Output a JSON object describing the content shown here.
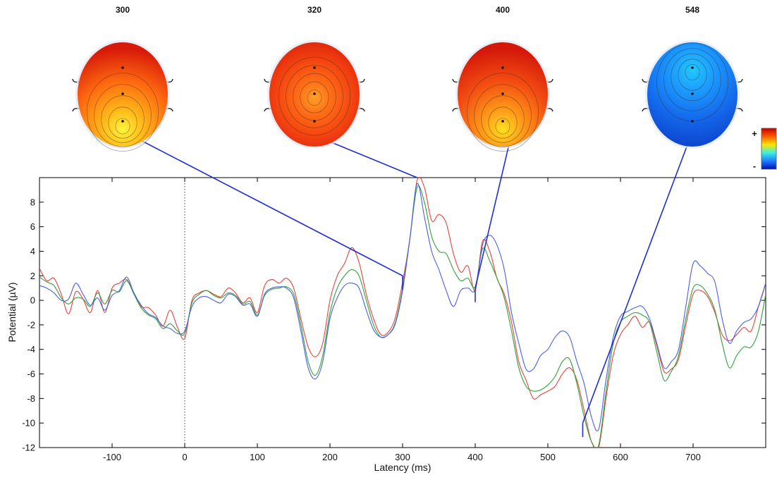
{
  "chart_data": {
    "type": "line",
    "xlabel": "Latency (ms)",
    "ylabel": "Potential (µV)",
    "xlim": [
      -200,
      800
    ],
    "ylim": [
      -12,
      10
    ],
    "x_ticks": [
      -100,
      0,
      100,
      200,
      300,
      400,
      500,
      600,
      700
    ],
    "y_ticks": [
      -12,
      -10,
      -8,
      -6,
      -4,
      -2,
      0,
      2,
      4,
      6,
      8
    ],
    "stimulus_onset": 0,
    "grid": false,
    "series": [
      {
        "color": "#e8433a",
        "points": [
          [
            -200,
            2.6
          ],
          [
            -190,
            1.6
          ],
          [
            -180,
            1.8
          ],
          [
            -170,
            0.5
          ],
          [
            -160,
            -1.1
          ],
          [
            -150,
            0.7
          ],
          [
            -140,
            0.1
          ],
          [
            -130,
            -1.0
          ],
          [
            -120,
            0.8
          ],
          [
            -110,
            -1.0
          ],
          [
            -100,
            1.0
          ],
          [
            -90,
            1.4
          ],
          [
            -80,
            1.7
          ],
          [
            -70,
            0.6
          ],
          [
            -60,
            -0.5
          ],
          [
            -50,
            -0.6
          ],
          [
            -40,
            -1.2
          ],
          [
            -30,
            -2.1
          ],
          [
            -20,
            -0.8
          ],
          [
            -10,
            -2.2
          ],
          [
            0,
            -3.1
          ],
          [
            10,
            0.0
          ],
          [
            20,
            0.6
          ],
          [
            30,
            0.8
          ],
          [
            40,
            0.5
          ],
          [
            50,
            0.3
          ],
          [
            60,
            1.0
          ],
          [
            70,
            0.6
          ],
          [
            80,
            -0.2
          ],
          [
            90,
            0.2
          ],
          [
            100,
            -1.0
          ],
          [
            110,
            1.2
          ],
          [
            120,
            1.7
          ],
          [
            130,
            1.4
          ],
          [
            140,
            1.8
          ],
          [
            150,
            1.0
          ],
          [
            160,
            -1.5
          ],
          [
            170,
            -3.8
          ],
          [
            180,
            -4.6
          ],
          [
            190,
            -3.5
          ],
          [
            200,
            0.0
          ],
          [
            210,
            2.0
          ],
          [
            220,
            3.0
          ],
          [
            230,
            4.3
          ],
          [
            240,
            3.1
          ],
          [
            250,
            0.5
          ],
          [
            260,
            -1.5
          ],
          [
            270,
            -2.8
          ],
          [
            280,
            -2.6
          ],
          [
            290,
            -1.4
          ],
          [
            300,
            1.5
          ],
          [
            310,
            5.0
          ],
          [
            320,
            9.8
          ],
          [
            330,
            9.2
          ],
          [
            340,
            6.5
          ],
          [
            350,
            7.0
          ],
          [
            360,
            6.3
          ],
          [
            370,
            3.8
          ],
          [
            380,
            2.3
          ],
          [
            390,
            2.8
          ],
          [
            400,
            0.8
          ],
          [
            410,
            4.8
          ],
          [
            420,
            4.0
          ],
          [
            430,
            1.8
          ],
          [
            440,
            0.5
          ],
          [
            450,
            -1.8
          ],
          [
            460,
            -5.0
          ],
          [
            470,
            -6.5
          ],
          [
            480,
            -8.0
          ],
          [
            490,
            -7.7
          ],
          [
            500,
            -7.4
          ],
          [
            510,
            -7.0
          ],
          [
            520,
            -6.0
          ],
          [
            530,
            -5.5
          ],
          [
            540,
            -6.5
          ],
          [
            550,
            -9.0
          ],
          [
            560,
            -11.5
          ],
          [
            570,
            -12.0
          ],
          [
            580,
            -8.0
          ],
          [
            590,
            -4.5
          ],
          [
            600,
            -2.8
          ],
          [
            610,
            -2.0
          ],
          [
            620,
            -1.3
          ],
          [
            630,
            -2.2
          ],
          [
            640,
            -1.8
          ],
          [
            650,
            -3.7
          ],
          [
            660,
            -5.8
          ],
          [
            670,
            -5.6
          ],
          [
            680,
            -4.8
          ],
          [
            690,
            -2.0
          ],
          [
            700,
            0.5
          ],
          [
            710,
            0.8
          ],
          [
            720,
            0.3
          ],
          [
            730,
            -1.0
          ],
          [
            740,
            -2.8
          ],
          [
            750,
            -3.3
          ],
          [
            760,
            -2.8
          ],
          [
            770,
            -2.2
          ],
          [
            780,
            -2.5
          ],
          [
            790,
            -0.5
          ],
          [
            800,
            1.4
          ]
        ]
      },
      {
        "color": "#2fa13a",
        "points": [
          [
            -200,
            1.9
          ],
          [
            -190,
            1.5
          ],
          [
            -180,
            1.2
          ],
          [
            -170,
            0.2
          ],
          [
            -160,
            -0.3
          ],
          [
            -150,
            0.2
          ],
          [
            -140,
            0.1
          ],
          [
            -130,
            -0.5
          ],
          [
            -120,
            0.6
          ],
          [
            -110,
            -0.3
          ],
          [
            -100,
            0.8
          ],
          [
            -90,
            0.7
          ],
          [
            -80,
            1.6
          ],
          [
            -70,
            0.5
          ],
          [
            -60,
            -0.6
          ],
          [
            -50,
            -1.2
          ],
          [
            -40,
            -1.5
          ],
          [
            -30,
            -2.3
          ],
          [
            -20,
            -1.9
          ],
          [
            -10,
            -2.5
          ],
          [
            0,
            -2.7
          ],
          [
            10,
            -0.2
          ],
          [
            20,
            0.5
          ],
          [
            30,
            0.8
          ],
          [
            40,
            0.4
          ],
          [
            50,
            0.2
          ],
          [
            60,
            0.6
          ],
          [
            70,
            0.4
          ],
          [
            80,
            -0.3
          ],
          [
            90,
            -0.1
          ],
          [
            100,
            -1.2
          ],
          [
            110,
            0.4
          ],
          [
            120,
            0.9
          ],
          [
            130,
            1.0
          ],
          [
            140,
            1.1
          ],
          [
            150,
            0.5
          ],
          [
            160,
            -2.0
          ],
          [
            170,
            -5.0
          ],
          [
            180,
            -6.1
          ],
          [
            190,
            -4.5
          ],
          [
            200,
            -1.0
          ],
          [
            210,
            1.0
          ],
          [
            220,
            2.0
          ],
          [
            230,
            2.5
          ],
          [
            240,
            2.0
          ],
          [
            250,
            0.0
          ],
          [
            260,
            -2.0
          ],
          [
            270,
            -3.0
          ],
          [
            280,
            -2.8
          ],
          [
            290,
            -1.8
          ],
          [
            300,
            1.0
          ],
          [
            310,
            5.0
          ],
          [
            320,
            9.2
          ],
          [
            330,
            8.0
          ],
          [
            340,
            5.2
          ],
          [
            350,
            4.0
          ],
          [
            360,
            3.8
          ],
          [
            370,
            2.5
          ],
          [
            380,
            1.6
          ],
          [
            390,
            1.8
          ],
          [
            400,
            1.1
          ],
          [
            410,
            4.2
          ],
          [
            420,
            3.2
          ],
          [
            430,
            1.8
          ],
          [
            440,
            0.2
          ],
          [
            450,
            -2.5
          ],
          [
            460,
            -5.5
          ],
          [
            470,
            -7.0
          ],
          [
            480,
            -7.4
          ],
          [
            490,
            -7.3
          ],
          [
            500,
            -6.9
          ],
          [
            510,
            -6.2
          ],
          [
            520,
            -5.0
          ],
          [
            530,
            -4.8
          ],
          [
            540,
            -6.8
          ],
          [
            550,
            -9.5
          ],
          [
            560,
            -11.5
          ],
          [
            570,
            -11.8
          ],
          [
            580,
            -7.5
          ],
          [
            590,
            -3.5
          ],
          [
            600,
            -1.8
          ],
          [
            610,
            -1.3
          ],
          [
            620,
            -1.0
          ],
          [
            630,
            -1.2
          ],
          [
            640,
            -1.8
          ],
          [
            650,
            -4.2
          ],
          [
            660,
            -6.5
          ],
          [
            670,
            -5.8
          ],
          [
            680,
            -4.5
          ],
          [
            690,
            -1.5
          ],
          [
            700,
            1.0
          ],
          [
            710,
            1.2
          ],
          [
            720,
            0.5
          ],
          [
            730,
            -0.8
          ],
          [
            740,
            -3.5
          ],
          [
            750,
            -5.5
          ],
          [
            760,
            -4.5
          ],
          [
            770,
            -3.8
          ],
          [
            780,
            -3.8
          ],
          [
            790,
            -2.5
          ],
          [
            800,
            0.5
          ]
        ]
      },
      {
        "color": "#4a5fe8",
        "points": [
          [
            -200,
            1.2
          ],
          [
            -190,
            1.0
          ],
          [
            -180,
            0.6
          ],
          [
            -170,
            0.0
          ],
          [
            -160,
            0.1
          ],
          [
            -150,
            1.4
          ],
          [
            -140,
            0.5
          ],
          [
            -130,
            -0.4
          ],
          [
            -120,
            0.2
          ],
          [
            -110,
            -0.8
          ],
          [
            -100,
            0.4
          ],
          [
            -90,
            0.8
          ],
          [
            -80,
            1.9
          ],
          [
            -70,
            0.6
          ],
          [
            -60,
            -0.4
          ],
          [
            -50,
            -1.1
          ],
          [
            -40,
            -1.4
          ],
          [
            -30,
            -2.1
          ],
          [
            -20,
            -2.3
          ],
          [
            -10,
            -2.7
          ],
          [
            0,
            -2.5
          ],
          [
            10,
            -0.5
          ],
          [
            20,
            0.2
          ],
          [
            30,
            0.3
          ],
          [
            40,
            0.0
          ],
          [
            50,
            -0.2
          ],
          [
            60,
            0.5
          ],
          [
            70,
            0.3
          ],
          [
            80,
            -0.4
          ],
          [
            90,
            -0.3
          ],
          [
            100,
            -1.3
          ],
          [
            110,
            0.5
          ],
          [
            120,
            1.0
          ],
          [
            130,
            1.1
          ],
          [
            140,
            1.0
          ],
          [
            150,
            0.2
          ],
          [
            160,
            -2.5
          ],
          [
            170,
            -5.5
          ],
          [
            180,
            -6.4
          ],
          [
            190,
            -5.0
          ],
          [
            200,
            -1.5
          ],
          [
            210,
            0.2
          ],
          [
            220,
            1.2
          ],
          [
            230,
            1.4
          ],
          [
            240,
            1.0
          ],
          [
            250,
            -0.8
          ],
          [
            260,
            -2.4
          ],
          [
            270,
            -3.0
          ],
          [
            280,
            -2.8
          ],
          [
            290,
            -1.9
          ],
          [
            300,
            0.8
          ],
          [
            310,
            5.0
          ],
          [
            320,
            9.5
          ],
          [
            330,
            6.8
          ],
          [
            340,
            4.0
          ],
          [
            350,
            2.5
          ],
          [
            360,
            0.8
          ],
          [
            370,
            -0.5
          ],
          [
            380,
            0.8
          ],
          [
            390,
            1.0
          ],
          [
            400,
            0.9
          ],
          [
            410,
            4.5
          ],
          [
            420,
            5.3
          ],
          [
            430,
            4.5
          ],
          [
            440,
            2.5
          ],
          [
            450,
            -1.0
          ],
          [
            460,
            -3.5
          ],
          [
            470,
            -5.6
          ],
          [
            480,
            -5.6
          ],
          [
            490,
            -4.5
          ],
          [
            500,
            -4.0
          ],
          [
            510,
            -3.0
          ],
          [
            520,
            -2.5
          ],
          [
            530,
            -3.0
          ],
          [
            540,
            -5.0
          ],
          [
            550,
            -6.8
          ],
          [
            560,
            -9.5
          ],
          [
            570,
            -10.5
          ],
          [
            580,
            -6.5
          ],
          [
            590,
            -3.0
          ],
          [
            600,
            -1.3
          ],
          [
            610,
            -0.9
          ],
          [
            620,
            -0.6
          ],
          [
            630,
            -0.5
          ],
          [
            640,
            -1.5
          ],
          [
            650,
            -3.5
          ],
          [
            660,
            -5.5
          ],
          [
            670,
            -5.0
          ],
          [
            680,
            -4.0
          ],
          [
            690,
            -0.5
          ],
          [
            700,
            3.0
          ],
          [
            710,
            2.8
          ],
          [
            720,
            2.2
          ],
          [
            730,
            1.5
          ],
          [
            740,
            -1.5
          ],
          [
            750,
            -3.5
          ],
          [
            760,
            -2.5
          ],
          [
            770,
            -1.8
          ],
          [
            780,
            -1.5
          ],
          [
            790,
            -0.5
          ],
          [
            800,
            1.4
          ]
        ]
      }
    ],
    "topomaps": [
      {
        "label": "300",
        "latency": 300,
        "palette": [
          "#fff43c",
          "#ffb818",
          "#ff6a10",
          "#d71a0a"
        ],
        "hotspot": "posterior",
        "pin_y": 2.0
      },
      {
        "label": "320",
        "latency": 320,
        "palette": [
          "#ffa02a",
          "#ff6e16",
          "#f24010",
          "#d0180a"
        ],
        "hotspot": "center",
        "pin_y": 10.0
      },
      {
        "label": "400",
        "latency": 400,
        "palette": [
          "#ffe020",
          "#ff9a18",
          "#f34d12",
          "#d3180a"
        ],
        "hotspot": "posterior",
        "pin_y": 1.0
      },
      {
        "label": "548",
        "latency": 548,
        "palette": [
          "#22c8ff",
          "#1c9cff",
          "#1466ea",
          "#0a3cc6"
        ],
        "hotspot": "frontal",
        "pin_y": -10.0
      }
    ],
    "colorbar": {
      "top_label": "+",
      "bottom_label": "-",
      "stops": [
        "#c40000",
        "#ff5a00",
        "#ffe600",
        "#3cf0e0",
        "#1e7cff",
        "#0010b4"
      ]
    }
  }
}
